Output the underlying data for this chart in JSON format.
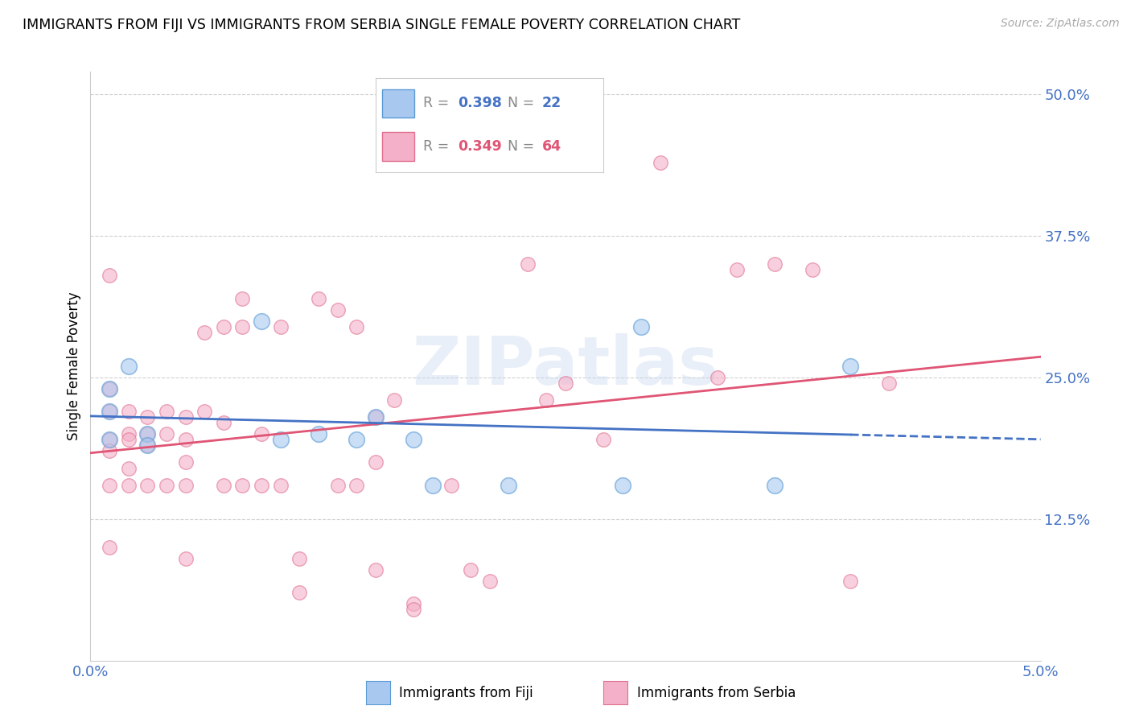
{
  "title": "IMMIGRANTS FROM FIJI VS IMMIGRANTS FROM SERBIA SINGLE FEMALE POVERTY CORRELATION CHART",
  "source": "Source: ZipAtlas.com",
  "ylabel": "Single Female Poverty",
  "xlim": [
    0.0,
    0.05
  ],
  "ylim": [
    0.0,
    0.52
  ],
  "fiji_color": "#a8c8f0",
  "fiji_edge_color": "#5b9bd5",
  "serbia_color": "#f4b0c8",
  "serbia_edge_color": "#e07090",
  "line_fiji_color": "#4472c4",
  "line_serbia_color": "#e05575",
  "fiji_R": 0.398,
  "fiji_N": 22,
  "serbia_R": 0.349,
  "serbia_N": 64,
  "watermark": "ZIPatlas",
  "fiji_points_x": [
    0.001,
    0.001,
    0.001,
    0.002,
    0.003,
    0.003,
    0.009,
    0.01,
    0.012,
    0.014,
    0.015,
    0.017,
    0.018,
    0.022,
    0.028,
    0.029,
    0.036,
    0.04
  ],
  "fiji_points_y": [
    0.24,
    0.22,
    0.195,
    0.26,
    0.2,
    0.19,
    0.3,
    0.195,
    0.2,
    0.195,
    0.215,
    0.195,
    0.155,
    0.155,
    0.155,
    0.295,
    0.155,
    0.26
  ],
  "serbia_points_x": [
    0.001,
    0.001,
    0.001,
    0.001,
    0.001,
    0.001,
    0.001,
    0.002,
    0.002,
    0.002,
    0.002,
    0.002,
    0.003,
    0.003,
    0.003,
    0.003,
    0.004,
    0.004,
    0.004,
    0.005,
    0.005,
    0.005,
    0.005,
    0.005,
    0.006,
    0.006,
    0.007,
    0.007,
    0.007,
    0.008,
    0.008,
    0.008,
    0.009,
    0.009,
    0.01,
    0.01,
    0.011,
    0.011,
    0.012,
    0.013,
    0.013,
    0.014,
    0.014,
    0.015,
    0.015,
    0.015,
    0.016,
    0.017,
    0.017,
    0.019,
    0.02,
    0.021,
    0.023,
    0.024,
    0.025,
    0.027,
    0.03,
    0.033,
    0.034,
    0.036,
    0.038,
    0.04,
    0.042
  ],
  "serbia_points_y": [
    0.24,
    0.22,
    0.195,
    0.185,
    0.155,
    0.1,
    0.34,
    0.22,
    0.2,
    0.195,
    0.17,
    0.155,
    0.215,
    0.2,
    0.19,
    0.155,
    0.22,
    0.2,
    0.155,
    0.215,
    0.195,
    0.175,
    0.155,
    0.09,
    0.29,
    0.22,
    0.295,
    0.21,
    0.155,
    0.32,
    0.295,
    0.155,
    0.2,
    0.155,
    0.295,
    0.155,
    0.09,
    0.06,
    0.32,
    0.31,
    0.155,
    0.295,
    0.155,
    0.215,
    0.175,
    0.08,
    0.23,
    0.05,
    0.045,
    0.155,
    0.08,
    0.07,
    0.35,
    0.23,
    0.245,
    0.195,
    0.44,
    0.25,
    0.345,
    0.35,
    0.345,
    0.07,
    0.245
  ],
  "yticks": [
    0.125,
    0.25,
    0.375,
    0.5
  ],
  "ytick_labels": [
    "12.5%",
    "25.0%",
    "37.5%",
    "50.0%"
  ],
  "xticks": [
    0.0,
    0.05
  ],
  "xtick_labels": [
    "0.0%",
    "5.0%"
  ],
  "legend_fiji_R": "0.398",
  "legend_fiji_N": "22",
  "legend_serbia_R": "0.349",
  "legend_serbia_N": "64",
  "bottom_label_fiji": "Immigrants from Fiji",
  "bottom_label_serbia": "Immigrants from Serbia"
}
